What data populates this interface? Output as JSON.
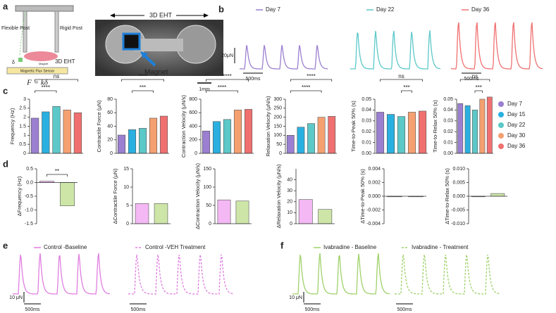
{
  "panel_labels": [
    "a",
    "b",
    "c",
    "d",
    "e",
    "f"
  ],
  "schematic": {
    "flexible_post": "Flexible Post",
    "rigid_post": "Rigid Post",
    "eht": "3D EHT",
    "delta": "δ",
    "magnet_small": "Magnet",
    "sensor": "Magnetic Flux Sensor",
    "formula": "F = kδ"
  },
  "photo": {
    "eht": "3D EHT",
    "magnet": "Magnet",
    "scale": "1mm"
  },
  "traces_b": {
    "legend": [
      "Day 7",
      "Day 22",
      "Day 36"
    ],
    "colors": [
      "#9b7fd0",
      "#5cc8c8",
      "#f07070"
    ],
    "force_scale": "20μN",
    "time_scale": [
      "500ms",
      "500ms"
    ]
  },
  "traces_e": {
    "legend": [
      "Control -Baseline",
      "Control -VEH Treatment"
    ],
    "color": "#e07ee0",
    "force_scale": "10 μN",
    "time_scale": [
      "500ms",
      "500ms"
    ]
  },
  "traces_f": {
    "legend": [
      "Ivabradine - Baseline",
      "Ivabradine - Treatment"
    ],
    "color": "#9fd16a",
    "force_scale": "10 μN",
    "time_scale": [
      "500ms",
      "500ms"
    ]
  },
  "chart_data": [
    {
      "type": "bar",
      "ylabel": "Frequency (Hz)",
      "categories": [
        "Day 7",
        "Day 15",
        "Day 22",
        "Day 30",
        "Day 36"
      ],
      "colors": [
        "#9b7fd0",
        "#2ab0e0",
        "#5cc8c8",
        "#f5a070",
        "#f07070"
      ],
      "values": [
        1.95,
        2.3,
        2.6,
        2.4,
        2.25
      ],
      "ylim": [
        0,
        3
      ],
      "yticks": [
        0,
        0.5,
        1,
        1.5,
        2,
        2.5,
        3
      ],
      "annotations": [
        "ns",
        "****"
      ]
    },
    {
      "type": "bar",
      "ylabel": "Contractile Force (μN)",
      "categories": [
        "Day 7",
        "Day 15",
        "Day 22",
        "Day 30",
        "Day 36"
      ],
      "colors": [
        "#9b7fd0",
        "#2ab0e0",
        "#5cc8c8",
        "#f5a070",
        "#f07070"
      ],
      "values": [
        27,
        35,
        37,
        52,
        55
      ],
      "ylim": [
        0,
        80
      ],
      "yticks": [
        0,
        20,
        40,
        60,
        80
      ],
      "annotations": [
        "****",
        "***"
      ]
    },
    {
      "type": "bar",
      "ylabel": "Contraction Velocity (μN/s)",
      "categories": [
        "Day 7",
        "Day 15",
        "Day 22",
        "Day 30",
        "Day 36"
      ],
      "colors": [
        "#9b7fd0",
        "#2ab0e0",
        "#5cc8c8",
        "#f5a070",
        "#f07070"
      ],
      "values": [
        330,
        470,
        500,
        640,
        650
      ],
      "ylim": [
        0,
        800
      ],
      "yticks": [
        0,
        200,
        400,
        600,
        800
      ],
      "annotations": [
        "****",
        "****"
      ]
    },
    {
      "type": "bar",
      "ylabel": "Relaxation Velocity (μN/s)",
      "categories": [
        "Day 7",
        "Day 15",
        "Day 22",
        "Day 30",
        "Day 36"
      ],
      "colors": [
        "#9b7fd0",
        "#2ab0e0",
        "#5cc8c8",
        "#f5a070",
        "#f07070"
      ],
      "values": [
        100,
        145,
        165,
        200,
        205
      ],
      "ylim": [
        0,
        300
      ],
      "yticks": [
        0,
        50,
        100,
        150,
        200,
        250,
        300
      ],
      "annotations": [
        "****",
        "****"
      ]
    },
    {
      "type": "bar",
      "ylabel": "Time-to-Peak 50% (s)",
      "categories": [
        "Day 7",
        "Day 15",
        "Day 22",
        "Day 30",
        "Day 36"
      ],
      "colors": [
        "#9b7fd0",
        "#2ab0e0",
        "#5cc8c8",
        "#f5a070",
        "#f07070"
      ],
      "values": [
        0.038,
        0.036,
        0.034,
        0.038,
        0.039
      ],
      "ylim": [
        0,
        0.05
      ],
      "yticks": [
        {
          "value": 0,
          "label": "0.00"
        },
        {
          "value": 0.01,
          "label": "0.01"
        },
        {
          "value": 0.02,
          "label": "0.02"
        },
        {
          "value": 0.03,
          "label": "0.03"
        },
        {
          "value": 0.04,
          "label": "0.04"
        },
        {
          "value": 0.05,
          "label": "0.05"
        }
      ],
      "annotations": [
        "ns",
        "***"
      ]
    },
    {
      "type": "bar",
      "ylabel": "Time-to-Relax 50% (s)",
      "categories": [
        "Day 7",
        "Day 15",
        "Day 22",
        "Day 30",
        "Day 36"
      ],
      "colors": [
        "#9b7fd0",
        "#2ab0e0",
        "#5cc8c8",
        "#f5a070",
        "#f07070"
      ],
      "values": [
        0.046,
        0.044,
        0.04,
        0.05,
        0.052
      ],
      "ylim": [
        0,
        0.05
      ],
      "yticks": [
        {
          "value": 0,
          "label": "0.00"
        },
        {
          "value": 0.01,
          "label": "0.01"
        },
        {
          "value": 0.02,
          "label": "0.02"
        },
        {
          "value": 0.03,
          "label": "0.03"
        },
        {
          "value": 0.04,
          "label": "0.04"
        },
        {
          "value": 0.05,
          "label": "0.05"
        }
      ],
      "annotations": [
        "ns",
        "***"
      ]
    },
    {
      "type": "bar",
      "ylabel": "ΔFrequency (Hz)",
      "categories": [
        null,
        null
      ],
      "colors": [
        "#f4b8f4",
        "#cde6a8"
      ],
      "values": [
        0.05,
        -0.85
      ],
      "ylim": [
        -1.5,
        0.5
      ],
      "yticks": [
        {
          "value": -1.5,
          "label": "-1.5"
        },
        {
          "value": -1,
          "label": "-1.0"
        },
        {
          "value": -0.5,
          "label": "-0.5"
        },
        {
          "value": 0,
          "label": "0.0"
        },
        {
          "value": 0.5,
          "label": "0.5"
        }
      ],
      "annotations": [
        "**"
      ]
    },
    {
      "type": "bar",
      "ylabel": "ΔContractile Force (μN)",
      "categories": [
        null,
        null
      ],
      "colors": [
        "#f4b8f4",
        "#cde6a8"
      ],
      "values": [
        5.5,
        5.5
      ],
      "ylim": [
        0,
        15
      ],
      "yticks": [
        0,
        5,
        10,
        15
      ],
      "annotations": []
    },
    {
      "type": "bar",
      "ylabel": "ΔContraction Velocity (μN/s)",
      "categories": [
        null,
        null
      ],
      "colors": [
        "#f4b8f4",
        "#cde6a8"
      ],
      "values": [
        65,
        62
      ],
      "ylim": [
        0,
        150
      ],
      "yticks": [
        0,
        50,
        100,
        150
      ],
      "annotations": []
    },
    {
      "type": "bar",
      "ylabel": "ΔRelaxation Velocity (μN/s)",
      "categories": [
        null,
        null
      ],
      "colors": [
        "#f4b8f4",
        "#cde6a8"
      ],
      "values": [
        22,
        13
      ],
      "ylim": [
        0,
        50
      ],
      "yticks": [
        0,
        10,
        20,
        30,
        40
      ],
      "annotations": []
    },
    {
      "type": "bar",
      "ylabel": "ΔTime-to-Peak 50% (s)",
      "categories": [
        null,
        null
      ],
      "colors": [
        "#f4b8f4",
        "#cde6a8"
      ],
      "values": [
        0,
        0
      ],
      "ylim": [
        -0.004,
        0.004
      ],
      "yticks": [
        {
          "value": -0.004,
          "label": "-0.004"
        },
        {
          "value": -0.002,
          "label": "-0.002"
        },
        {
          "value": 0,
          "label": "0.000"
        },
        {
          "value": 0.002,
          "label": "0.002"
        },
        {
          "value": 0.004,
          "label": "0.004"
        }
      ],
      "annotations": []
    },
    {
      "type": "bar",
      "ylabel": "ΔTime-to-Relax 50% (s)",
      "categories": [
        null,
        null
      ],
      "colors": [
        "#f4b8f4",
        "#cde6a8"
      ],
      "values": [
        0,
        0.001
      ],
      "ylim": [
        -0.01,
        0.01
      ],
      "yticks": [
        {
          "value": -0.01,
          "label": "-0.010"
        },
        {
          "value": -0.005,
          "label": "-0.005"
        },
        {
          "value": 0,
          "label": "0.000"
        },
        {
          "value": 0.005,
          "label": "0.005"
        },
        {
          "value": 0.01,
          "label": "0.010"
        }
      ],
      "annotations": []
    }
  ]
}
